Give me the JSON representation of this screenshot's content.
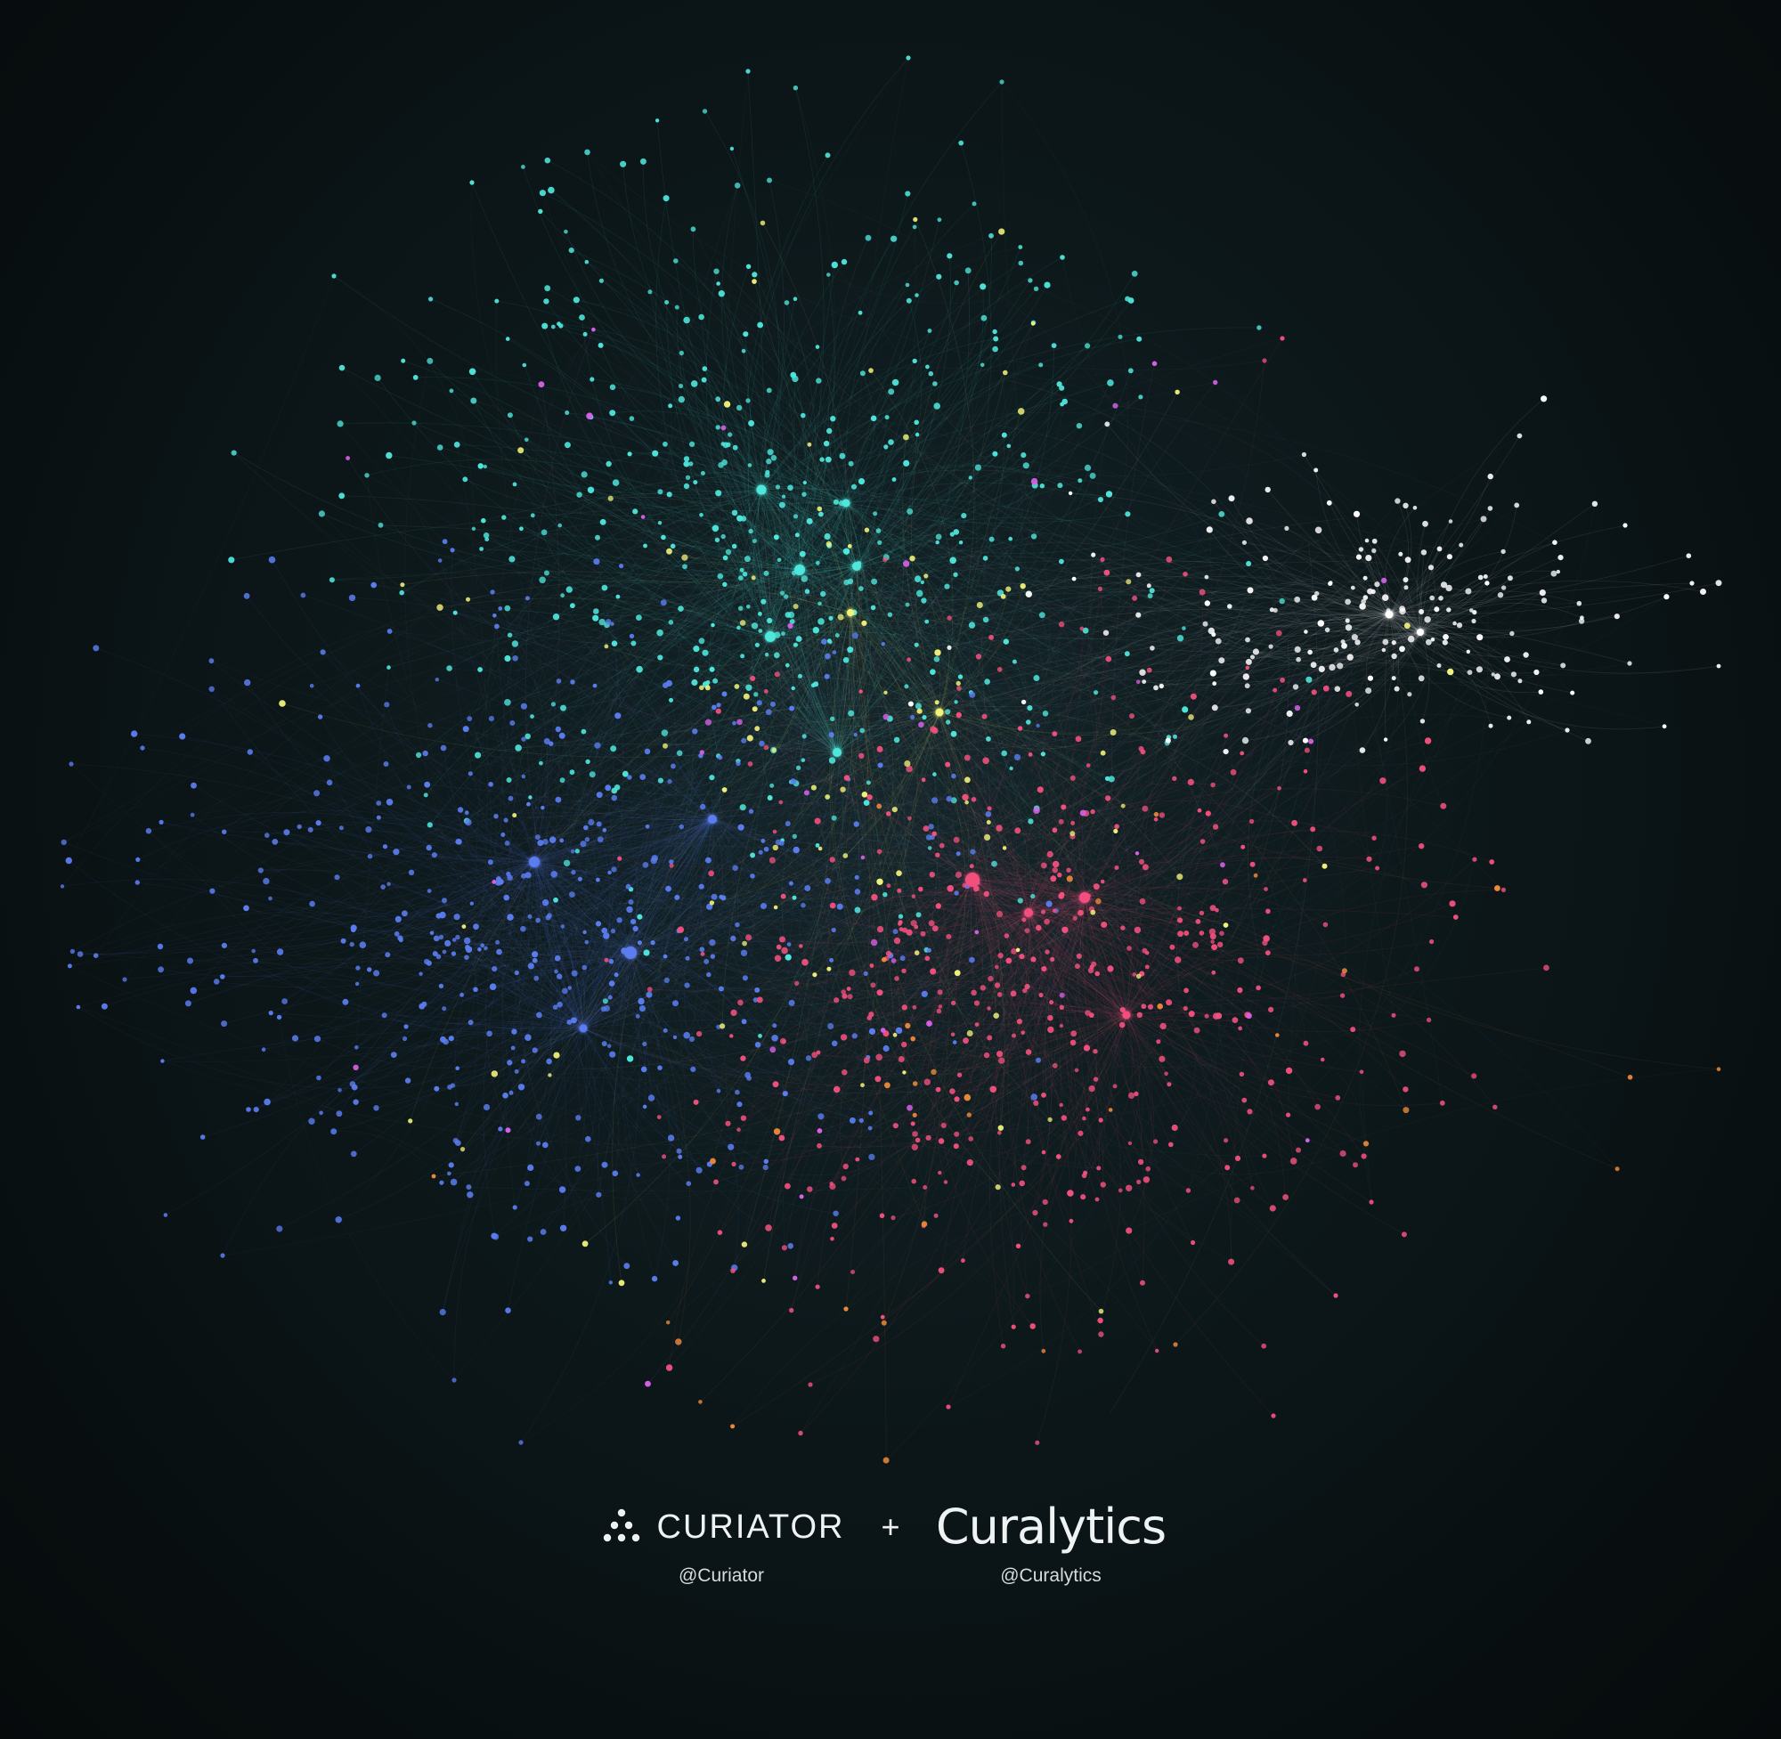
{
  "chart_data": {
    "type": "network",
    "title": "",
    "clusters": [
      {
        "name": "",
        "color": "#4fe6dc"
      },
      {
        "name": "",
        "color": "#5b7df0"
      },
      {
        "name": "",
        "color": "#f2507e"
      },
      {
        "name": "",
        "color": "#ffffff"
      },
      {
        "name": "",
        "color": "#f2f27a"
      },
      {
        "name": "",
        "color": "#d860e8"
      },
      {
        "name": "",
        "color": "#f08a3a"
      }
    ],
    "edge_color": "#8fb0b0",
    "background_color": "#0b1416"
  },
  "footer": {
    "curiator": {
      "icon": "triangle-dots-icon",
      "name": "CURIATOR",
      "handle": "@Curiator"
    },
    "separator": "+",
    "curalytics": {
      "name": "Curalytics",
      "handle": "@Curalytics"
    }
  }
}
